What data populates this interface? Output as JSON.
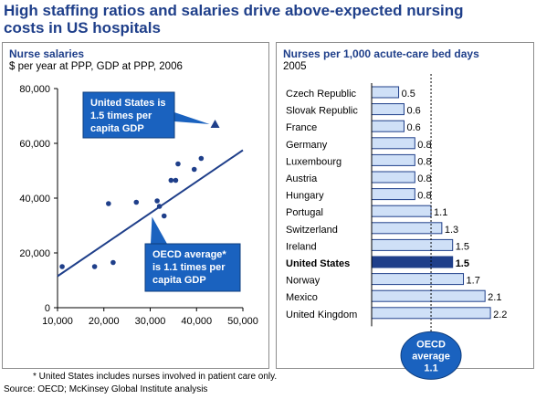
{
  "title_lines": [
    "High staffing ratios and salaries drive above-expected nursing",
    "costs in US hospitals"
  ],
  "colors": {
    "title": "#1f3f8a",
    "point": "#1f3f8a",
    "trend": "#1f3f8a",
    "callout": "#1a62bf",
    "bar_fill": "#cfe0f7",
    "bar_stroke": "#1f3f8a",
    "bar_highlight": "#1f3f8a"
  },
  "chart_data": [
    {
      "type": "scatter",
      "title": "Nurse salaries",
      "subtitle": "$ per year at PPP, GDP at PPP, 2006",
      "xlim": [
        10000,
        50000
      ],
      "ylim": [
        0,
        80000
      ],
      "x_ticks": [
        10000,
        20000,
        30000,
        40000,
        50000
      ],
      "y_ticks": [
        0,
        20000,
        40000,
        60000,
        80000
      ],
      "x_tick_labels": [
        "10,000",
        "20,000",
        "30,000",
        "40,000",
        "50,000"
      ],
      "y_tick_labels": [
        "0",
        "20,000",
        "40,000",
        "60,000",
        "80,000"
      ],
      "points": [
        {
          "x": 11000,
          "y": 15000
        },
        {
          "x": 18000,
          "y": 15000
        },
        {
          "x": 21000,
          "y": 38000
        },
        {
          "x": 22000,
          "y": 16500
        },
        {
          "x": 27000,
          "y": 38500
        },
        {
          "x": 31500,
          "y": 39000
        },
        {
          "x": 32000,
          "y": 37000
        },
        {
          "x": 33000,
          "y": 33500
        },
        {
          "x": 34500,
          "y": 46500
        },
        {
          "x": 35500,
          "y": 46500
        },
        {
          "x": 36000,
          "y": 52500
        },
        {
          "x": 39500,
          "y": 50500
        },
        {
          "x": 41000,
          "y": 54500
        }
      ],
      "highlight_point": {
        "x": 44000,
        "y": 67000
      },
      "trend_line": {
        "x": [
          10000,
          50000
        ],
        "y": [
          11500,
          57500
        ]
      },
      "annotations": [
        {
          "id": "us",
          "lines": [
            "United States is",
            "1.5 times per",
            "capita GDP"
          ]
        },
        {
          "id": "oecd",
          "lines": [
            "OECD average*",
            "is 1.1 times per",
            "capita GDP"
          ]
        }
      ]
    },
    {
      "type": "bar",
      "title": "Nurses per 1,000 acute-care bed days",
      "subtitle": "2005",
      "xlim": [
        0,
        2.3
      ],
      "categories": [
        "Czech Republic",
        "Slovak Republic",
        "France",
        "Germany",
        "Luxembourg",
        "Austria",
        "Hungary",
        "Portugal",
        "Switzerland",
        "Ireland",
        "United States",
        "Norway",
        "Mexico",
        "United Kingdom"
      ],
      "values": [
        0.5,
        0.6,
        0.6,
        0.8,
        0.8,
        0.8,
        0.8,
        1.1,
        1.3,
        1.5,
        1.5,
        1.7,
        2.1,
        2.2
      ],
      "value_labels": [
        "0.5",
        "0.6",
        "0.6",
        "0.8",
        "0.8",
        "0.8",
        "0.8",
        "1.1",
        "1.3",
        "1.5",
        "1.5",
        "1.7",
        "2.1",
        "2.2"
      ],
      "highlight": "United States",
      "reference": {
        "value": 1.1,
        "lines": [
          "OECD",
          "average",
          "1.1"
        ]
      }
    }
  ],
  "footnote": "* United States includes nurses involved in patient care only.",
  "source": "Source: OECD; McKinsey Global Institute analysis"
}
